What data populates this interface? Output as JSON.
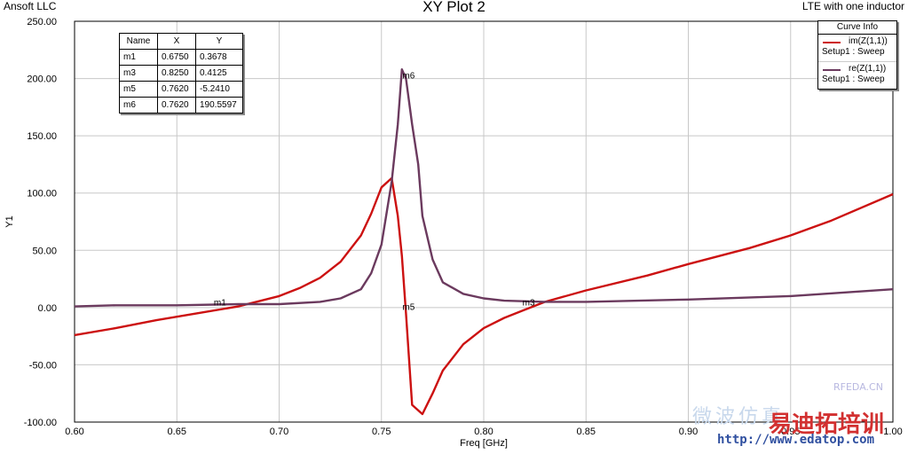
{
  "header": {
    "company": "Ansoft LLC",
    "title": "XY Plot 2",
    "project": "LTE with one inductor"
  },
  "markers_table": {
    "columns": [
      "Name",
      "X",
      "Y"
    ],
    "rows": [
      [
        "m1",
        "0.6750",
        "0.3678"
      ],
      [
        "m3",
        "0.8250",
        "0.4125"
      ],
      [
        "m5",
        "0.7620",
        "-5.2410"
      ],
      [
        "m6",
        "0.7620",
        "190.5597"
      ]
    ]
  },
  "legend": {
    "title": "Curve Info",
    "items": [
      {
        "name": "im(Z(1,1))",
        "sub": "Setup1 : Sweep",
        "color": "#cc1111"
      },
      {
        "name": "re(Z(1,1))",
        "sub": "Setup1 : Sweep",
        "color": "#6b3a5e"
      }
    ]
  },
  "watermark": {
    "site": "RFEDA.CN",
    "url": "http://www.edatop.com",
    "cn_text": "微波仿真",
    "brand": "易迪拓培训"
  },
  "chart_data": {
    "type": "line",
    "title": "XY Plot 2",
    "xlabel": "Freq [GHz]",
    "ylabel": "Y1",
    "xlim": [
      0.6,
      1.0
    ],
    "ylim": [
      -100,
      250
    ],
    "x_ticks": [
      "0.60",
      "0.65",
      "0.70",
      "0.75",
      "0.80",
      "0.85",
      "0.90",
      "0.95",
      "1.00"
    ],
    "y_ticks": [
      "-100.00",
      "-50.00",
      "0.00",
      "50.00",
      "100.00",
      "150.00",
      "200.00",
      "250.00"
    ],
    "grid": true,
    "legend_position": "top-right",
    "series": [
      {
        "name": "im(Z(1,1))",
        "color": "#cc1111",
        "x": [
          0.6,
          0.62,
          0.64,
          0.66,
          0.68,
          0.7,
          0.71,
          0.72,
          0.73,
          0.74,
          0.745,
          0.75,
          0.755,
          0.758,
          0.76,
          0.762,
          0.765,
          0.77,
          0.775,
          0.78,
          0.79,
          0.8,
          0.81,
          0.82,
          0.83,
          0.85,
          0.88,
          0.9,
          0.93,
          0.95,
          0.97,
          1.0
        ],
        "y": [
          -24,
          -18,
          -11,
          -5,
          1,
          10,
          17,
          26,
          40,
          63,
          82,
          105,
          113,
          80,
          45,
          -5,
          -85,
          -93,
          -75,
          -55,
          -32,
          -18,
          -9,
          -2,
          5,
          15,
          28,
          38,
          52,
          63,
          76,
          99
        ]
      },
      {
        "name": "re(Z(1,1))",
        "color": "#6b3a5e",
        "x": [
          0.6,
          0.62,
          0.65,
          0.68,
          0.7,
          0.72,
          0.73,
          0.74,
          0.745,
          0.75,
          0.755,
          0.758,
          0.76,
          0.762,
          0.765,
          0.768,
          0.77,
          0.775,
          0.78,
          0.79,
          0.8,
          0.81,
          0.83,
          0.85,
          0.9,
          0.95,
          1.0
        ],
        "y": [
          1,
          2,
          2,
          3,
          3,
          5,
          8,
          16,
          30,
          55,
          110,
          160,
          208,
          200,
          160,
          125,
          80,
          42,
          22,
          12,
          8,
          6,
          5,
          5,
          7,
          10,
          16
        ]
      }
    ],
    "markers": [
      {
        "name": "m1",
        "x": 0.675,
        "y": 0.3678
      },
      {
        "name": "m3",
        "x": 0.825,
        "y": 0.4125
      },
      {
        "name": "m5",
        "x": 0.762,
        "y": -5.241
      },
      {
        "name": "m6",
        "x": 0.762,
        "y": 190.5597
      }
    ]
  }
}
